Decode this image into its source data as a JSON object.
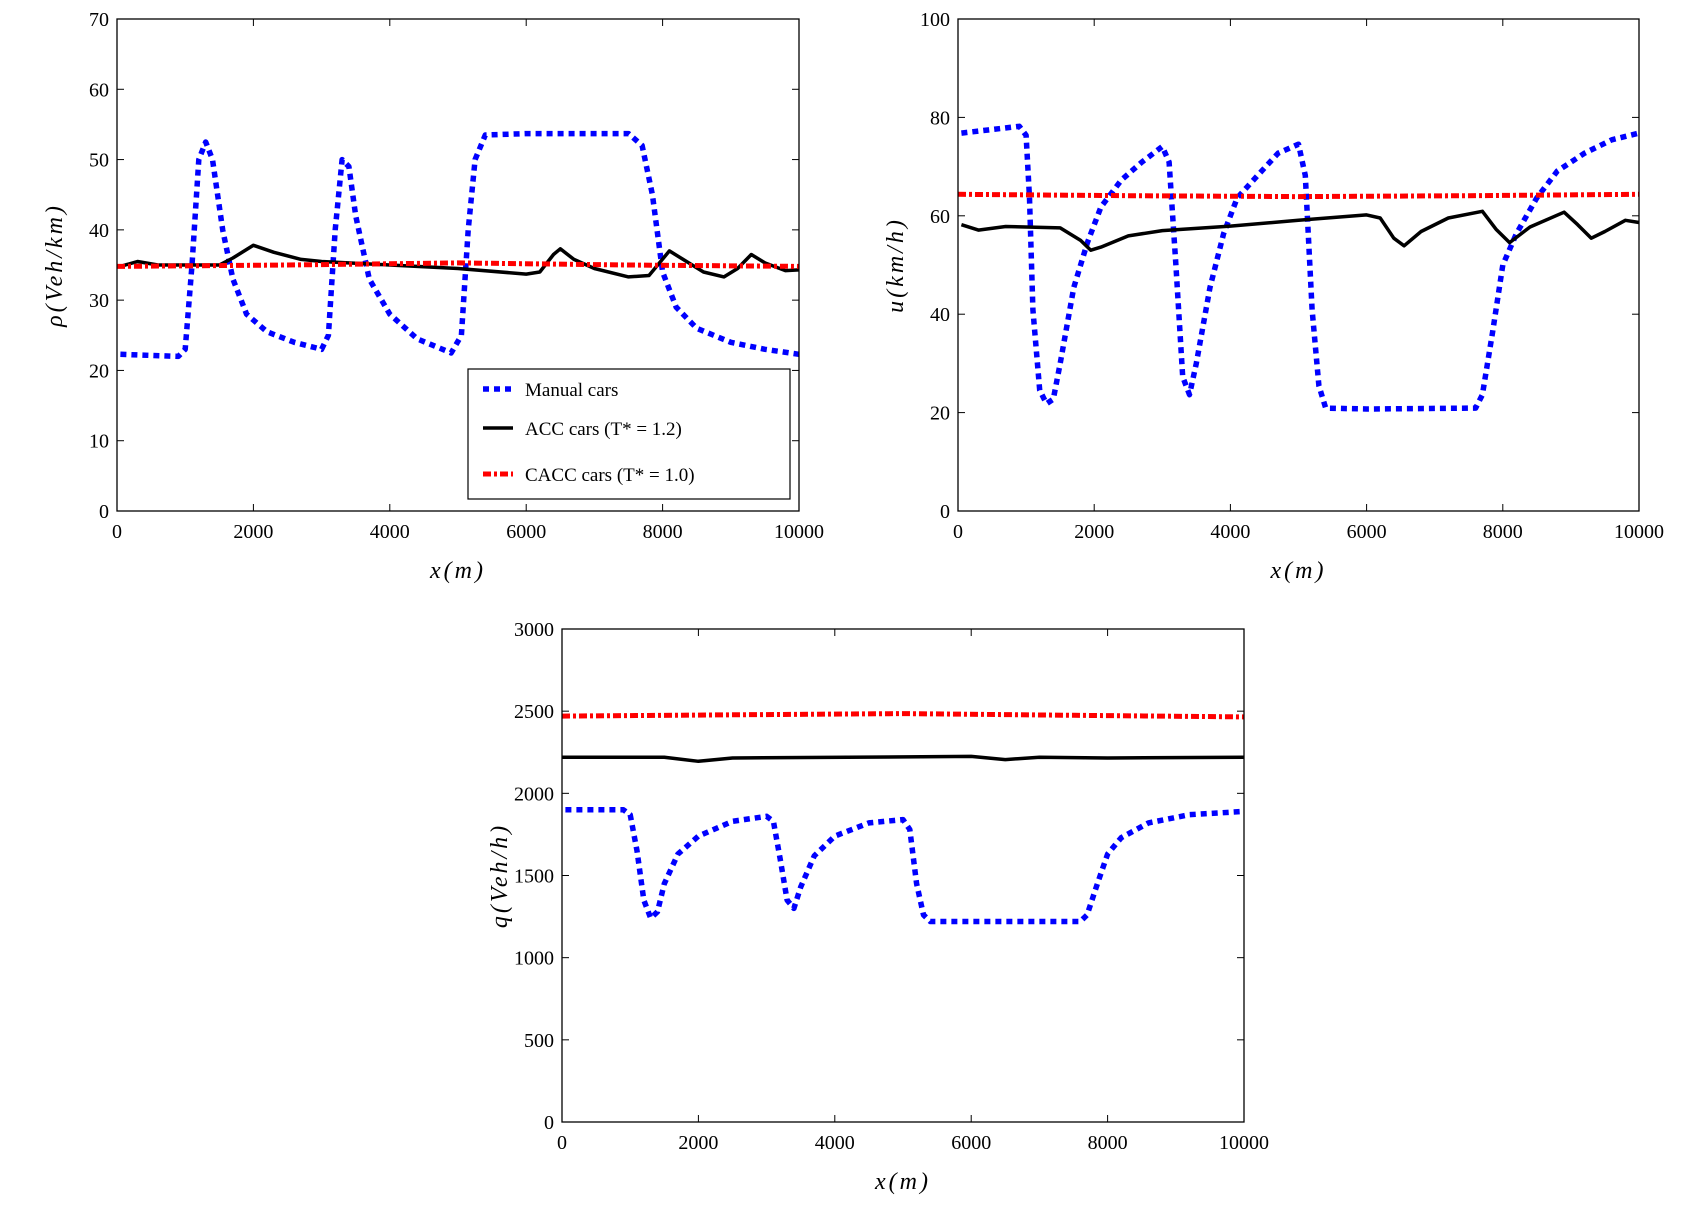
{
  "chart_data": [
    {
      "type": "line",
      "xlabel": "x(m)",
      "ylabel": "ρ(Veh/km)",
      "xlim": [
        0,
        10000
      ],
      "ylim": [
        0,
        70
      ],
      "xticks": [
        "0",
        "2000",
        "4000",
        "6000",
        "8000",
        "10000"
      ],
      "yticks": [
        "0",
        "10",
        "20",
        "30",
        "40",
        "50",
        "60",
        "70"
      ],
      "grid": false,
      "legend_position": "bottom-right",
      "series": [
        {
          "name": "Manual cars",
          "style": "dotted",
          "color": "#0000ff",
          "points": [
            [
              50,
              22.3
            ],
            [
              900,
              22
            ],
            [
              1000,
              23
            ],
            [
              1100,
              35
            ],
            [
              1200,
              50
            ],
            [
              1300,
              52.5
            ],
            [
              1400,
              50
            ],
            [
              1550,
              40
            ],
            [
              1700,
              33
            ],
            [
              1900,
              28
            ],
            [
              2200,
              25.5
            ],
            [
              2600,
              24
            ],
            [
              3000,
              23
            ],
            [
              3100,
              25
            ],
            [
              3200,
              40
            ],
            [
              3300,
              50
            ],
            [
              3400,
              49
            ],
            [
              3500,
              42
            ],
            [
              3700,
              33
            ],
            [
              4000,
              28
            ],
            [
              4400,
              24.5
            ],
            [
              4900,
              22.5
            ],
            [
              5050,
              25
            ],
            [
              5150,
              40
            ],
            [
              5250,
              50
            ],
            [
              5400,
              53.5
            ],
            [
              6000,
              53.7
            ],
            [
              7500,
              53.7
            ],
            [
              7700,
              52
            ],
            [
              7850,
              45
            ],
            [
              8000,
              34
            ],
            [
              8200,
              29
            ],
            [
              8500,
              26
            ],
            [
              9000,
              24
            ],
            [
              9500,
              23
            ],
            [
              10000,
              22.3
            ]
          ]
        },
        {
          "name": "ACC cars (T* = 1.2)",
          "style": "solid",
          "color": "#000000",
          "points": [
            [
              50,
              34.8
            ],
            [
              300,
              35.5
            ],
            [
              600,
              35
            ],
            [
              1500,
              35
            ],
            [
              1700,
              36
            ],
            [
              2000,
              37.8
            ],
            [
              2300,
              36.8
            ],
            [
              2700,
              35.8
            ],
            [
              3000,
              35.5
            ],
            [
              4000,
              35
            ],
            [
              5000,
              34.5
            ],
            [
              6000,
              33.7
            ],
            [
              6200,
              34
            ],
            [
              6400,
              36.5
            ],
            [
              6500,
              37.3
            ],
            [
              6700,
              35.8
            ],
            [
              7000,
              34.5
            ],
            [
              7500,
              33.3
            ],
            [
              7800,
              33.5
            ],
            [
              8100,
              37
            ],
            [
              8300,
              35.8
            ],
            [
              8600,
              34
            ],
            [
              8900,
              33.3
            ],
            [
              9100,
              34.5
            ],
            [
              9300,
              36.5
            ],
            [
              9500,
              35.3
            ],
            [
              9800,
              34.2
            ],
            [
              10000,
              34.3
            ]
          ]
        },
        {
          "name": "CACC cars (T* = 1.0)",
          "style": "dashdot",
          "color": "#ff0000",
          "points": [
            [
              0,
              34.8
            ],
            [
              2500,
              35
            ],
            [
              5000,
              35.3
            ],
            [
              7500,
              35
            ],
            [
              10000,
              34.8
            ]
          ]
        }
      ]
    },
    {
      "type": "line",
      "xlabel": "x(m)",
      "ylabel": "u(km/h)",
      "xlim": [
        0,
        10000
      ],
      "ylim": [
        0,
        110
      ],
      "xticks": [
        "0",
        "2000",
        "4000",
        "6000",
        "8000",
        "10000"
      ],
      "yticks": [
        "0",
        "20",
        "40",
        "60",
        "80",
        "100"
      ],
      "grid": false,
      "series": [
        {
          "name": "Manual cars",
          "style": "dotted",
          "color": "#0000ff",
          "points": [
            [
              50,
              84.5
            ],
            [
              900,
              86
            ],
            [
              1000,
              84
            ],
            [
              1050,
              70
            ],
            [
              1100,
              45
            ],
            [
              1200,
              27
            ],
            [
              1300,
              24
            ],
            [
              1400,
              25
            ],
            [
              1500,
              33
            ],
            [
              1700,
              50
            ],
            [
              1900,
              60
            ],
            [
              2100,
              68
            ],
            [
              2400,
              74
            ],
            [
              2700,
              78
            ],
            [
              3000,
              81.5
            ],
            [
              3100,
              78
            ],
            [
              3200,
              55
            ],
            [
              3300,
              30
            ],
            [
              3400,
              26
            ],
            [
              3500,
              33
            ],
            [
              3700,
              50
            ],
            [
              3900,
              62
            ],
            [
              4100,
              70
            ],
            [
              4400,
              75
            ],
            [
              4700,
              80
            ],
            [
              5000,
              82
            ],
            [
              5100,
              75
            ],
            [
              5200,
              45
            ],
            [
              5300,
              28
            ],
            [
              5400,
              23
            ],
            [
              6000,
              22.8
            ],
            [
              7600,
              23
            ],
            [
              7700,
              26
            ],
            [
              7850,
              40
            ],
            [
              8000,
              55
            ],
            [
              8200,
              62
            ],
            [
              8500,
              70
            ],
            [
              8800,
              76
            ],
            [
              9200,
              80
            ],
            [
              9600,
              83
            ],
            [
              10000,
              84.5
            ]
          ]
        },
        {
          "name": "ACC cars (T* = 1.2)",
          "style": "solid",
          "color": "#000000",
          "points": [
            [
              50,
              64
            ],
            [
              300,
              62.8
            ],
            [
              700,
              63.6
            ],
            [
              1500,
              63.3
            ],
            [
              1800,
              60.5
            ],
            [
              1950,
              58.3
            ],
            [
              2100,
              59
            ],
            [
              2500,
              61.5
            ],
            [
              3000,
              62.7
            ],
            [
              4000,
              63.7
            ],
            [
              5000,
              65
            ],
            [
              6000,
              66.2
            ],
            [
              6200,
              65.5
            ],
            [
              6400,
              61
            ],
            [
              6550,
              59.3
            ],
            [
              6800,
              62.5
            ],
            [
              7200,
              65.5
            ],
            [
              7700,
              67
            ],
            [
              7900,
              63
            ],
            [
              8100,
              60
            ],
            [
              8400,
              63.5
            ],
            [
              8900,
              66.8
            ],
            [
              9100,
              64
            ],
            [
              9300,
              61
            ],
            [
              9500,
              62.5
            ],
            [
              9800,
              65
            ],
            [
              10000,
              64.5
            ]
          ]
        },
        {
          "name": "CACC cars (T* = 1.0)",
          "style": "dashdot",
          "color": "#ff0000",
          "points": [
            [
              0,
              70.8
            ],
            [
              2500,
              70.5
            ],
            [
              5000,
              70.3
            ],
            [
              7500,
              70.5
            ],
            [
              10000,
              70.8
            ]
          ]
        }
      ]
    },
    {
      "type": "line",
      "xlabel": "x(m)",
      "ylabel": "q(Veh/h)",
      "xlim": [
        0,
        10000
      ],
      "ylim": [
        0,
        3000
      ],
      "xticks": [
        "0",
        "2000",
        "4000",
        "6000",
        "8000",
        "10000"
      ],
      "yticks": [
        "0",
        "500",
        "1000",
        "1500",
        "2000",
        "2500",
        "3000"
      ],
      "grid": false,
      "series": [
        {
          "name": "Manual cars",
          "style": "dotted",
          "color": "#0000ff",
          "points": [
            [
              50,
              1900
            ],
            [
              900,
              1900
            ],
            [
              1000,
              1870
            ],
            [
              1100,
              1650
            ],
            [
              1200,
              1350
            ],
            [
              1300,
              1240
            ],
            [
              1400,
              1280
            ],
            [
              1500,
              1450
            ],
            [
              1700,
              1630
            ],
            [
              2000,
              1740
            ],
            [
              2500,
              1830
            ],
            [
              3000,
              1860
            ],
            [
              3100,
              1830
            ],
            [
              3200,
              1600
            ],
            [
              3300,
              1350
            ],
            [
              3400,
              1300
            ],
            [
              3500,
              1430
            ],
            [
              3700,
              1620
            ],
            [
              4000,
              1740
            ],
            [
              4500,
              1820
            ],
            [
              5000,
              1840
            ],
            [
              5100,
              1780
            ],
            [
              5200,
              1450
            ],
            [
              5300,
              1260
            ],
            [
              5400,
              1220
            ],
            [
              7600,
              1220
            ],
            [
              7700,
              1260
            ],
            [
              7850,
              1450
            ],
            [
              8000,
              1630
            ],
            [
              8200,
              1730
            ],
            [
              8600,
              1820
            ],
            [
              9200,
              1870
            ],
            [
              10000,
              1890
            ]
          ]
        },
        {
          "name": "ACC cars (T* = 1.2)",
          "style": "solid",
          "color": "#000000",
          "points": [
            [
              0,
              2220
            ],
            [
              1500,
              2220
            ],
            [
              2000,
              2195
            ],
            [
              2500,
              2215
            ],
            [
              6000,
              2225
            ],
            [
              6500,
              2205
            ],
            [
              7000,
              2220
            ],
            [
              8000,
              2215
            ],
            [
              10000,
              2220
            ]
          ]
        },
        {
          "name": "CACC cars (T* = 1.0)",
          "style": "dashdot",
          "color": "#ff0000",
          "points": [
            [
              0,
              2470
            ],
            [
              2500,
              2478
            ],
            [
              5000,
              2485
            ],
            [
              7500,
              2475
            ],
            [
              10000,
              2465
            ]
          ]
        }
      ]
    }
  ],
  "legend": {
    "manual": "Manual cars",
    "acc": "ACC cars (T* = 1.2)",
    "cacc": "CACC cars (T* = 1.0)"
  }
}
